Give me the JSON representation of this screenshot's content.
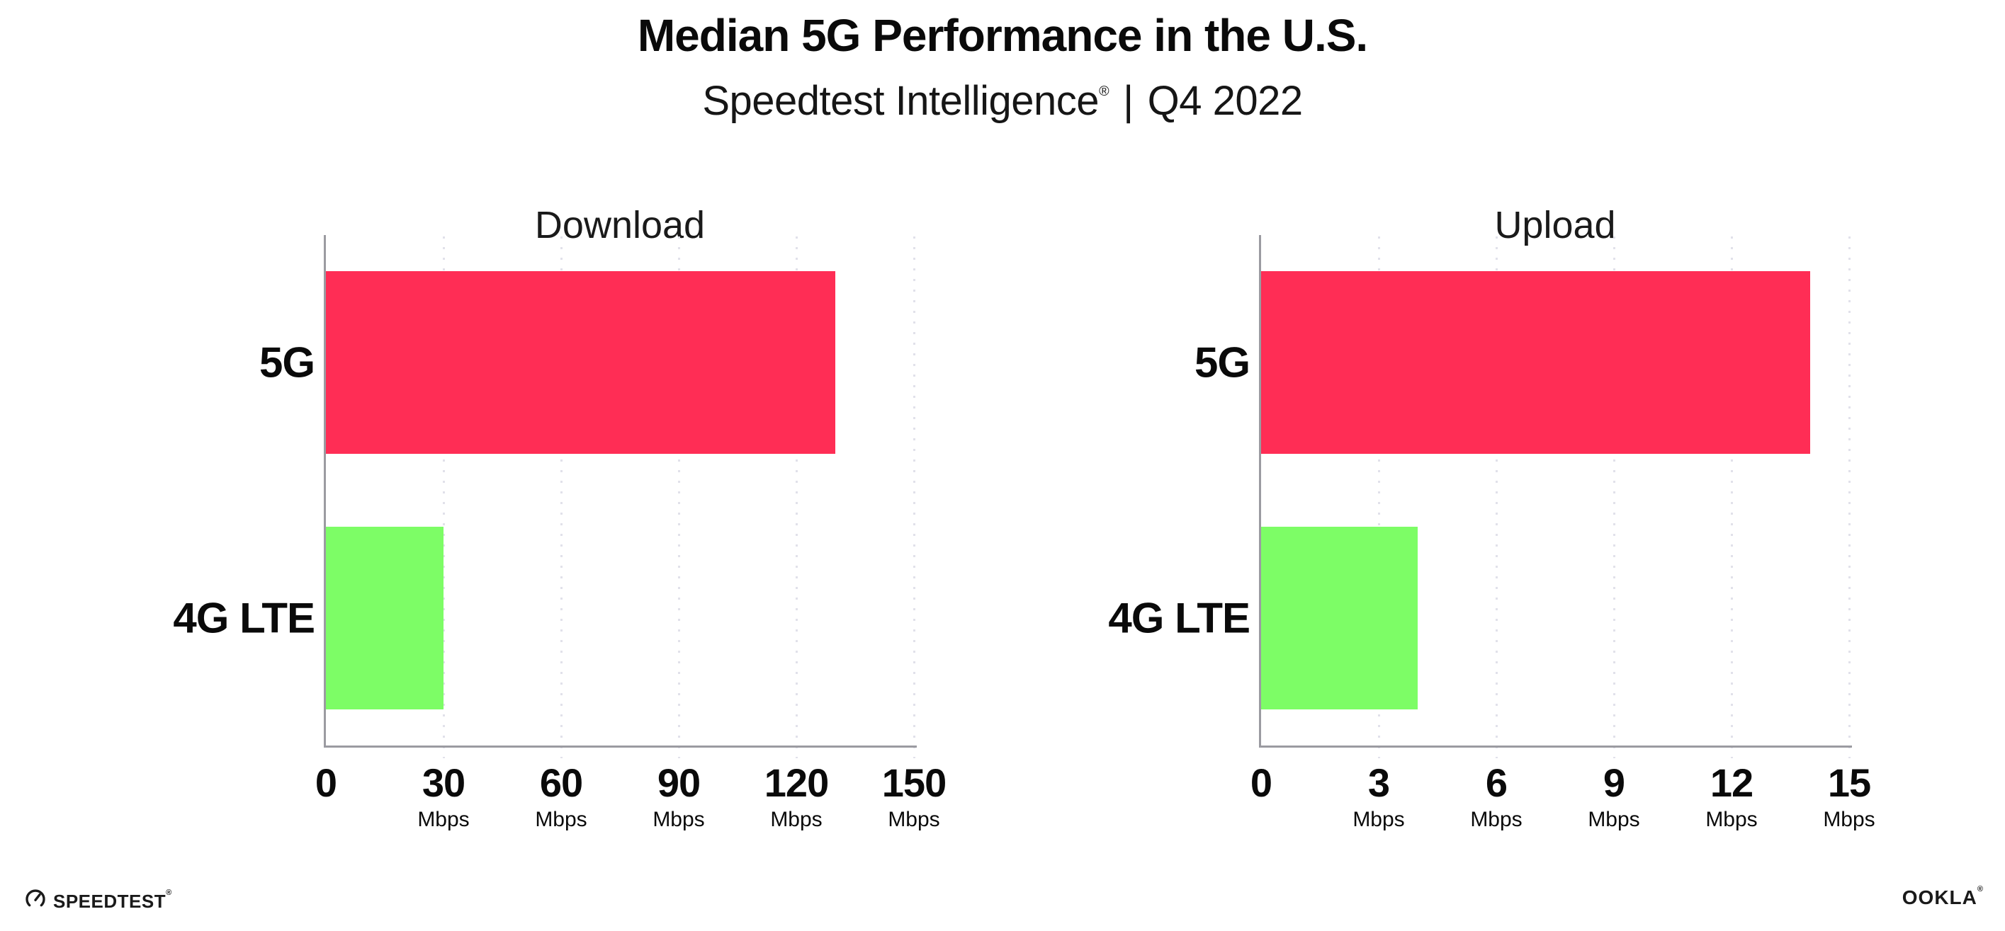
{
  "title": "Median 5G Performance in the U.S.",
  "subtitle": {
    "product": "Speedtest Intelligence",
    "registered_mark": "®",
    "separator": "|",
    "period": "Q4 2022"
  },
  "colors": {
    "bar_5g": "#FF2D55",
    "bar_4g_lte": "#7DFD66",
    "axis": "#9B9BA1",
    "gridline": "#E1E1EA",
    "text": "#0A0A0A"
  },
  "chart_data": [
    {
      "type": "bar",
      "orientation": "horizontal",
      "title": "Download",
      "categories": [
        "5G",
        "4G LTE"
      ],
      "values": [
        130,
        30
      ],
      "unit": "Mbps",
      "xlim": [
        0,
        150
      ],
      "xticks": [
        0,
        30,
        60,
        90,
        120,
        150
      ],
      "grid": "dotted-vertical",
      "legend": "none",
      "bar_colors": [
        "#FF2D55",
        "#7DFD66"
      ]
    },
    {
      "type": "bar",
      "orientation": "horizontal",
      "title": "Upload",
      "categories": [
        "5G",
        "4G LTE"
      ],
      "values": [
        14,
        4
      ],
      "unit": "Mbps",
      "xlim": [
        0,
        15
      ],
      "xticks": [
        0,
        3,
        6,
        9,
        12,
        15
      ],
      "grid": "dotted-vertical",
      "legend": "none",
      "bar_colors": [
        "#FF2D55",
        "#7DFD66"
      ]
    }
  ],
  "footer": {
    "speedtest_wordmark": "SPEEDTEST",
    "speedtest_mark": "®",
    "ookla_wordmark": "OOKLA",
    "ookla_mark": "®"
  }
}
